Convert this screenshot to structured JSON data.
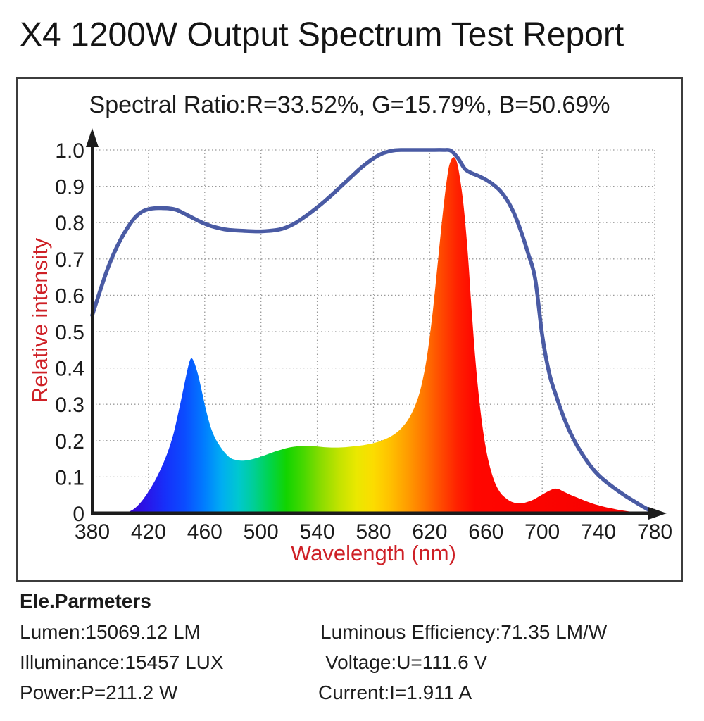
{
  "page": {
    "title": "X4 1200W Output Spectrum Test Report"
  },
  "chart_data": {
    "type": "area",
    "title": "Spectral Ratio:R=33.52%, G=15.79%, B=50.69%",
    "xlabel": "Wavelength (nm)",
    "ylabel": "Relative intensity",
    "xlim": [
      380,
      780
    ],
    "ylim": [
      0,
      1.0
    ],
    "grid": "dotted",
    "legend": "none",
    "x_ticks": [
      380,
      420,
      460,
      500,
      540,
      580,
      620,
      660,
      700,
      740,
      780
    ],
    "y_ticks": [
      {
        "value": 0,
        "label": "0"
      },
      {
        "value": 0.1,
        "label": "0.1"
      },
      {
        "value": 0.2,
        "label": "0.2"
      },
      {
        "value": 0.3,
        "label": "0.3"
      },
      {
        "value": 0.4,
        "label": "0.4"
      },
      {
        "value": 0.5,
        "label": "0.5"
      },
      {
        "value": 0.6,
        "label": "0.6"
      },
      {
        "value": 0.7,
        "label": "0.7"
      },
      {
        "value": 0.8,
        "label": "0.8"
      },
      {
        "value": 0.9,
        "label": "0.9"
      },
      {
        "value": 1.0,
        "label": "1.0"
      }
    ],
    "colors": {
      "envelope": "#4a5ba4",
      "axis": "#1c1c1c",
      "grid": "#999999",
      "tick_label": "#1b1b1b",
      "axis_label": "#ce2026"
    },
    "spectral_gradient_stops": [
      {
        "wavelength": 403,
        "color": "#3a00c8"
      },
      {
        "wavelength": 418,
        "color": "#2a14e8"
      },
      {
        "wavelength": 432,
        "color": "#1630fa"
      },
      {
        "wavelength": 446,
        "color": "#0b4dff"
      },
      {
        "wavelength": 460,
        "color": "#007eff"
      },
      {
        "wavelength": 472,
        "color": "#00adf2"
      },
      {
        "wavelength": 484,
        "color": "#00c8cf"
      },
      {
        "wavelength": 495,
        "color": "#00cf96"
      },
      {
        "wavelength": 506,
        "color": "#00d44d"
      },
      {
        "wavelength": 518,
        "color": "#12d400"
      },
      {
        "wavelength": 530,
        "color": "#46d800"
      },
      {
        "wavelength": 543,
        "color": "#8cdc00"
      },
      {
        "wavelength": 556,
        "color": "#c4e300"
      },
      {
        "wavelength": 568,
        "color": "#eae800"
      },
      {
        "wavelength": 580,
        "color": "#fcdc00"
      },
      {
        "wavelength": 592,
        "color": "#ffc000"
      },
      {
        "wavelength": 604,
        "color": "#ff9d00"
      },
      {
        "wavelength": 616,
        "color": "#ff7600"
      },
      {
        "wavelength": 628,
        "color": "#ff4a00"
      },
      {
        "wavelength": 640,
        "color": "#ff2000"
      },
      {
        "wavelength": 652,
        "color": "#ff0600"
      },
      {
        "wavelength": 780,
        "color": "#f40000"
      }
    ],
    "series": [
      {
        "name": "spectral-power-distribution",
        "type": "area",
        "fill": "spectral-gradient",
        "x": [
          403,
          406,
          410,
          414,
          418,
          422,
          426,
          430,
          434,
          438,
          442,
          445,
          448,
          450,
          452,
          455,
          458,
          461,
          464,
          467,
          470,
          474,
          478,
          482,
          486,
          490,
          495,
          500,
          505,
          510,
          515,
          520,
          525,
          530,
          535,
          540,
          545,
          550,
          555,
          560,
          565,
          570,
          575,
          580,
          585,
          590,
          595,
          600,
          605,
          610,
          614,
          618,
          622,
          626,
          630,
          633,
          635,
          637,
          639,
          641,
          644,
          647,
          650,
          653,
          656,
          659,
          662,
          666,
          670,
          674,
          678,
          682,
          686,
          690,
          694,
          698,
          702,
          706,
          709,
          712,
          715,
          720,
          725,
          730,
          735,
          740,
          745,
          750,
          755,
          760,
          765,
          770
        ],
        "y": [
          0,
          0.004,
          0.013,
          0.028,
          0.048,
          0.072,
          0.1,
          0.133,
          0.172,
          0.222,
          0.29,
          0.345,
          0.4,
          0.425,
          0.42,
          0.385,
          0.335,
          0.283,
          0.24,
          0.21,
          0.19,
          0.168,
          0.153,
          0.147,
          0.145,
          0.146,
          0.15,
          0.156,
          0.163,
          0.17,
          0.176,
          0.181,
          0.184,
          0.186,
          0.185,
          0.184,
          0.182,
          0.181,
          0.181,
          0.182,
          0.184,
          0.186,
          0.189,
          0.193,
          0.199,
          0.207,
          0.218,
          0.235,
          0.26,
          0.3,
          0.35,
          0.43,
          0.55,
          0.7,
          0.85,
          0.94,
          0.97,
          0.98,
          0.97,
          0.935,
          0.85,
          0.72,
          0.55,
          0.4,
          0.285,
          0.2,
          0.14,
          0.088,
          0.058,
          0.042,
          0.032,
          0.028,
          0.028,
          0.032,
          0.038,
          0.047,
          0.056,
          0.064,
          0.068,
          0.066,
          0.06,
          0.051,
          0.043,
          0.035,
          0.028,
          0.022,
          0.017,
          0.013,
          0.009,
          0.006,
          0.003,
          0.0
        ]
      },
      {
        "name": "envelope-curve",
        "type": "line",
        "color": "#4a5ba4",
        "x": [
          380,
          385,
          390,
          395,
          400,
          405,
          410,
          415,
          420,
          425,
          430,
          435,
          440,
          445,
          450,
          455,
          460,
          465,
          470,
          475,
          480,
          490,
          500,
          510,
          515,
          520,
          525,
          530,
          535,
          540,
          545,
          550,
          555,
          560,
          565,
          570,
          575,
          580,
          585,
          590,
          595,
          600,
          610,
          620,
          630,
          635,
          640,
          645,
          650,
          655,
          660,
          665,
          670,
          675,
          680,
          685,
          690,
          695,
          700,
          705,
          710,
          715,
          720,
          725,
          730,
          735,
          740,
          745,
          750,
          755,
          760,
          765,
          770,
          775,
          780
        ],
        "y": [
          0.545,
          0.605,
          0.663,
          0.712,
          0.752,
          0.785,
          0.812,
          0.829,
          0.837,
          0.84,
          0.84,
          0.839,
          0.835,
          0.826,
          0.816,
          0.806,
          0.797,
          0.79,
          0.785,
          0.781,
          0.779,
          0.777,
          0.776,
          0.779,
          0.783,
          0.79,
          0.8,
          0.813,
          0.827,
          0.842,
          0.858,
          0.875,
          0.893,
          0.911,
          0.929,
          0.947,
          0.963,
          0.977,
          0.988,
          0.995,
          0.999,
          1.0,
          1.0,
          1.0,
          1.0,
          0.998,
          0.978,
          0.948,
          0.936,
          0.928,
          0.918,
          0.905,
          0.888,
          0.862,
          0.825,
          0.775,
          0.715,
          0.645,
          0.49,
          0.385,
          0.322,
          0.267,
          0.222,
          0.185,
          0.154,
          0.127,
          0.105,
          0.088,
          0.073,
          0.059,
          0.046,
          0.034,
          0.022,
          0.011,
          0.0
        ]
      }
    ]
  },
  "parameters": {
    "heading": "Ele.Parmeters",
    "rows": [
      {
        "left": "Lumen:15069.12 LM",
        "right": "Luminous Efficiency:71.35 LM/W"
      },
      {
        "left": "Illuminance:15457 LUX",
        "right": "Voltage:U=111.6 V"
      },
      {
        "left": "Power:P=211.2 W",
        "right": "Current:I=1.911 A"
      }
    ]
  }
}
